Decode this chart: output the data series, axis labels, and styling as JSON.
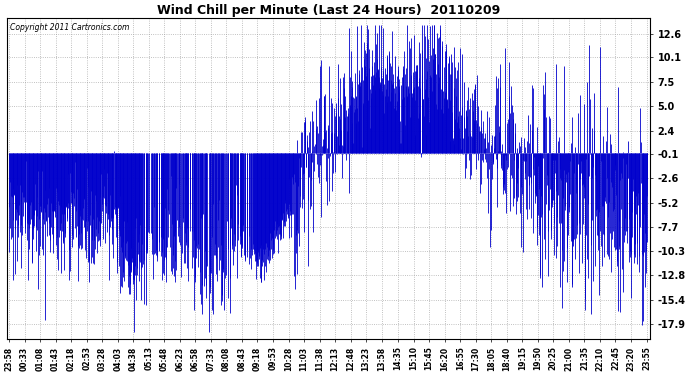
{
  "title": "Wind Chill per Minute (Last 24 Hours)  20110209",
  "copyright_text": "Copyright 2011 Cartronics.com",
  "bar_color": "#0000cc",
  "background_color": "#ffffff",
  "plot_bg_color": "#ffffff",
  "grid_color": "#999999",
  "yticks": [
    12.6,
    10.1,
    7.5,
    5.0,
    2.4,
    -0.1,
    -2.6,
    -5.2,
    -7.7,
    -10.3,
    -12.8,
    -15.4,
    -17.9
  ],
  "ymin": -19.5,
  "ymax": 14.2,
  "label_times": [
    "23:58",
    "00:33",
    "01:08",
    "01:43",
    "02:18",
    "02:53",
    "03:28",
    "04:03",
    "04:38",
    "05:13",
    "05:48",
    "06:23",
    "06:58",
    "07:33",
    "08:08",
    "08:43",
    "09:18",
    "09:53",
    "10:28",
    "11:03",
    "11:38",
    "12:13",
    "12:48",
    "13:23",
    "13:58",
    "14:35",
    "15:10",
    "15:45",
    "16:20",
    "16:55",
    "17:30",
    "18:05",
    "18:40",
    "19:15",
    "19:50",
    "20:25",
    "21:00",
    "21:35",
    "22:10",
    "22:45",
    "23:20",
    "23:55"
  ]
}
